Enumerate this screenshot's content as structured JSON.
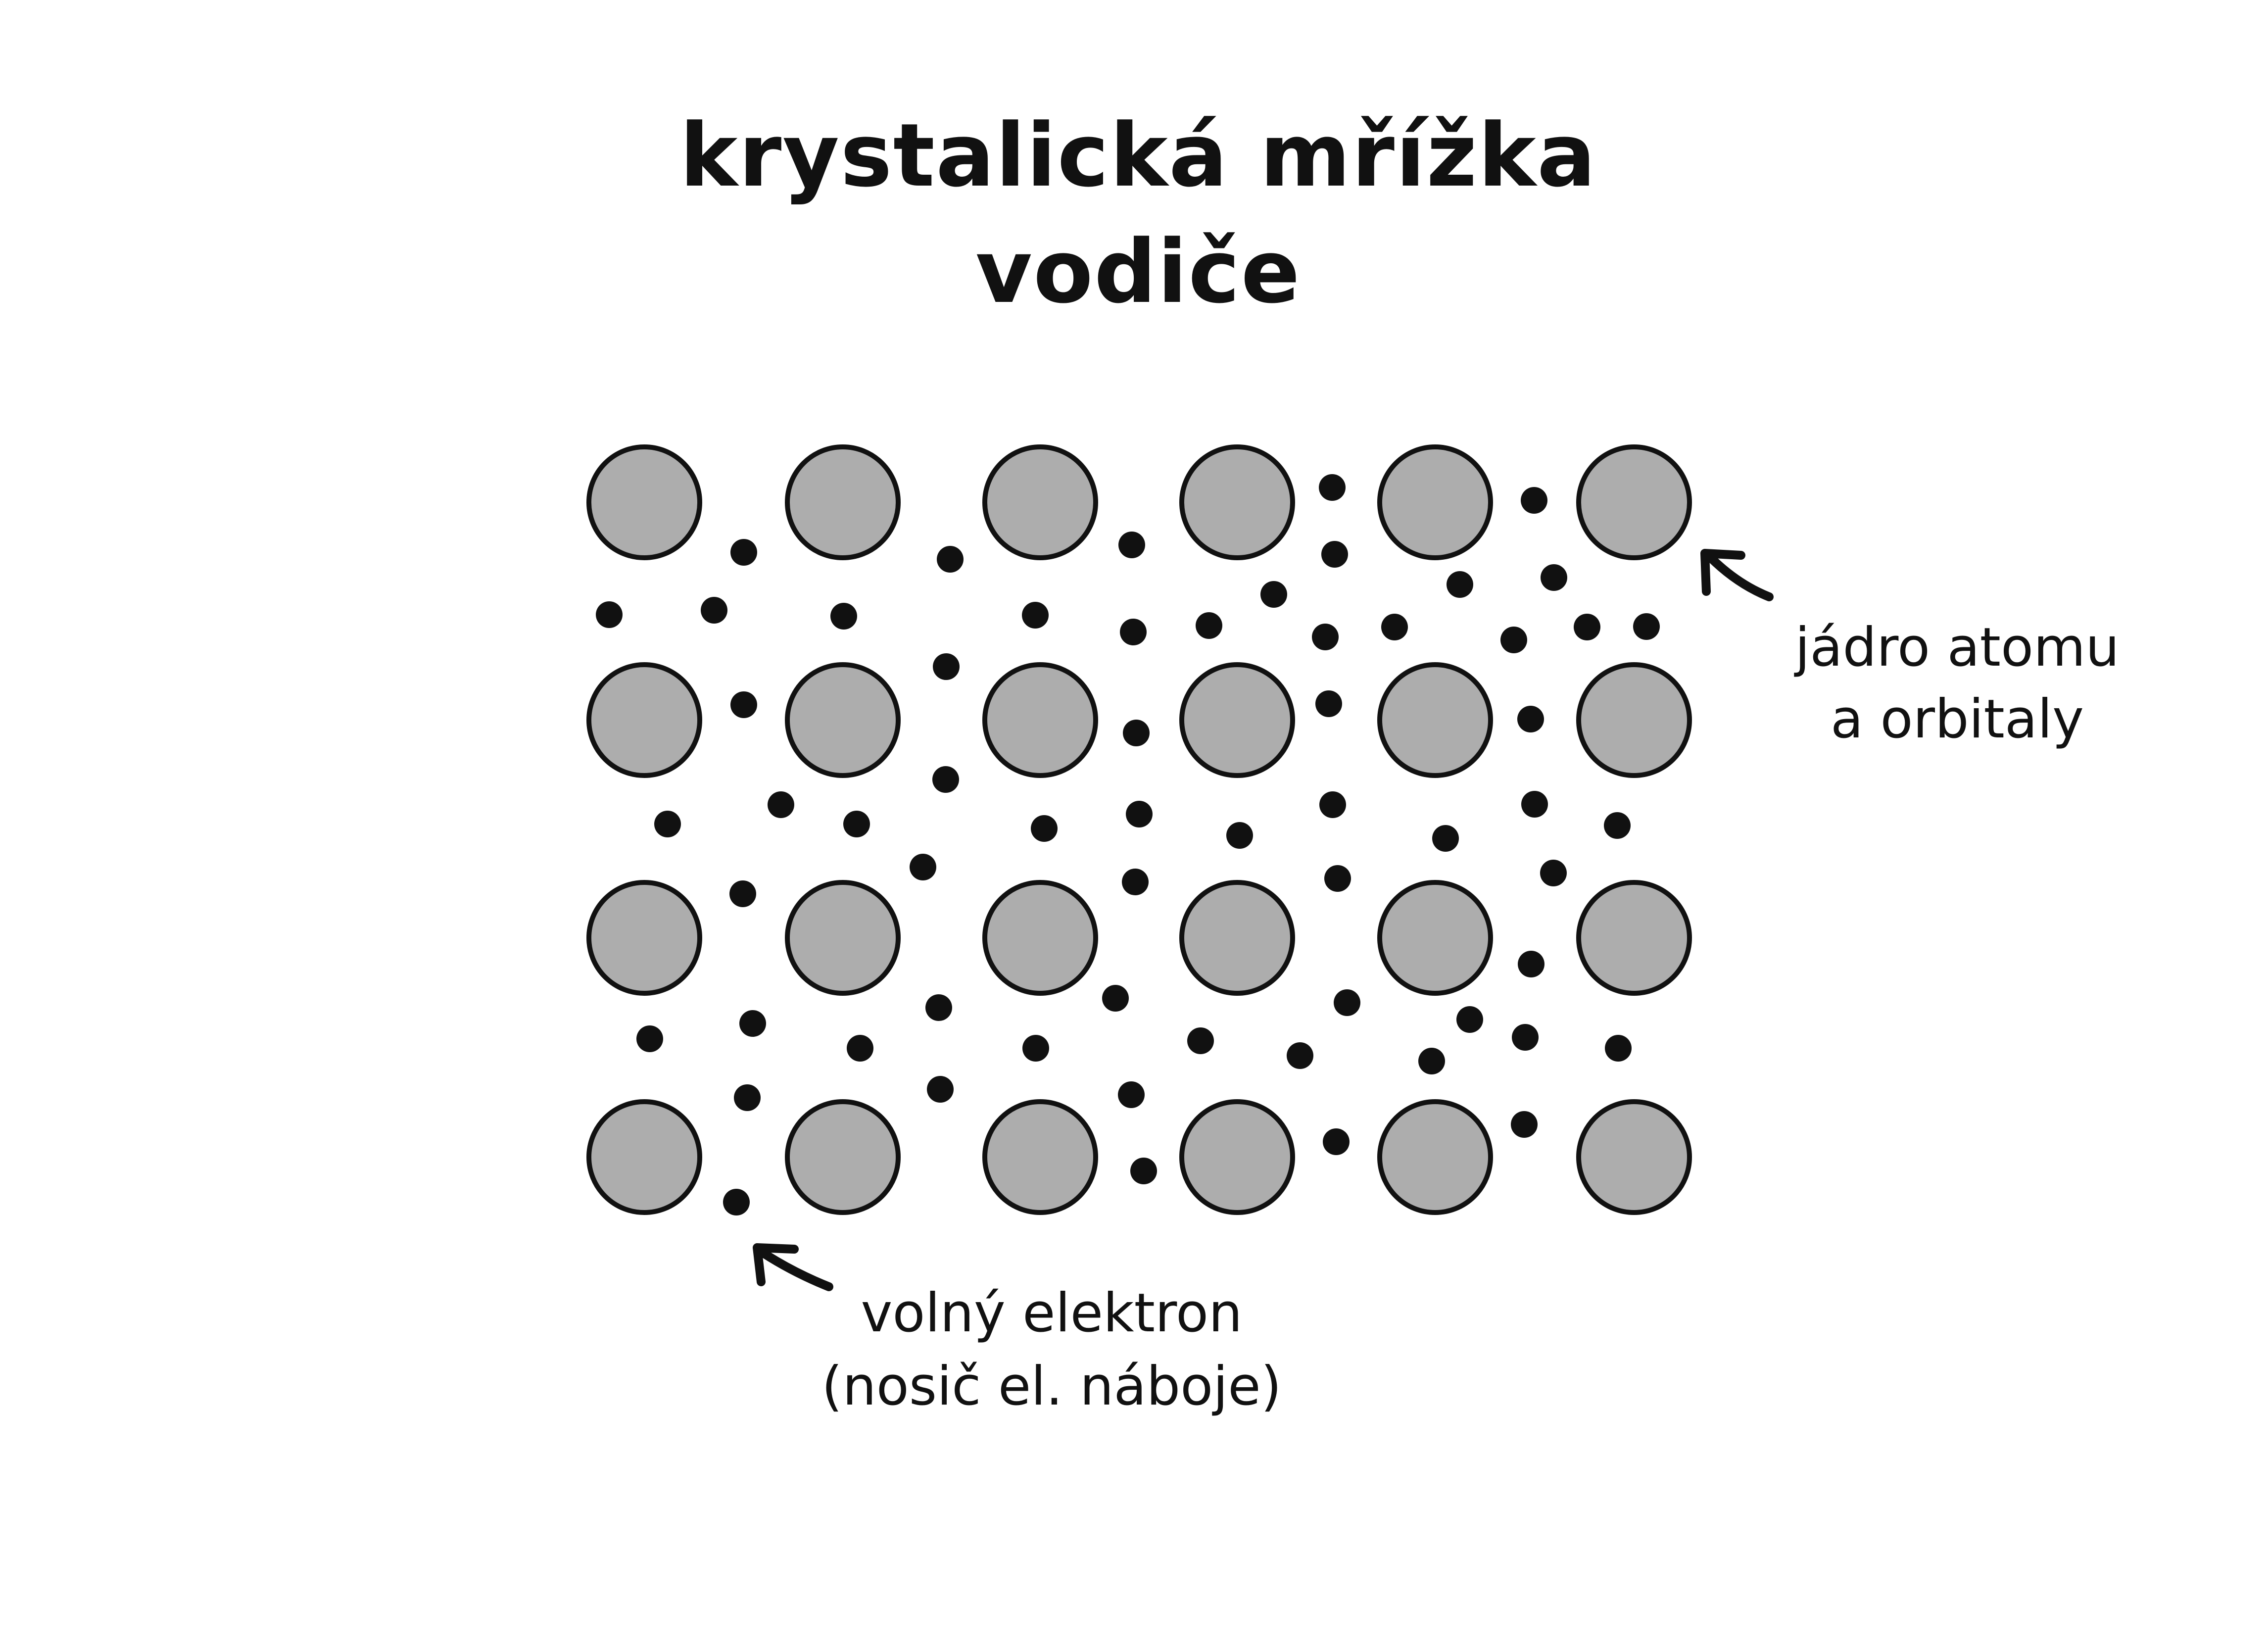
{
  "title": {
    "line1": "krystalická mřížka",
    "line2": "vodiče"
  },
  "labels": {
    "nucleus": {
      "line1": "jádro atomu",
      "line2": "a orbitaly"
    },
    "electron": {
      "line1": "volný elektron",
      "line2": "(nosič el. náboje)"
    }
  },
  "colors": {
    "background": "#ffffff",
    "ink": "#111111",
    "atom_fill": "#adadad"
  },
  "lattice": {
    "rows": 4,
    "columns": 6
  }
}
